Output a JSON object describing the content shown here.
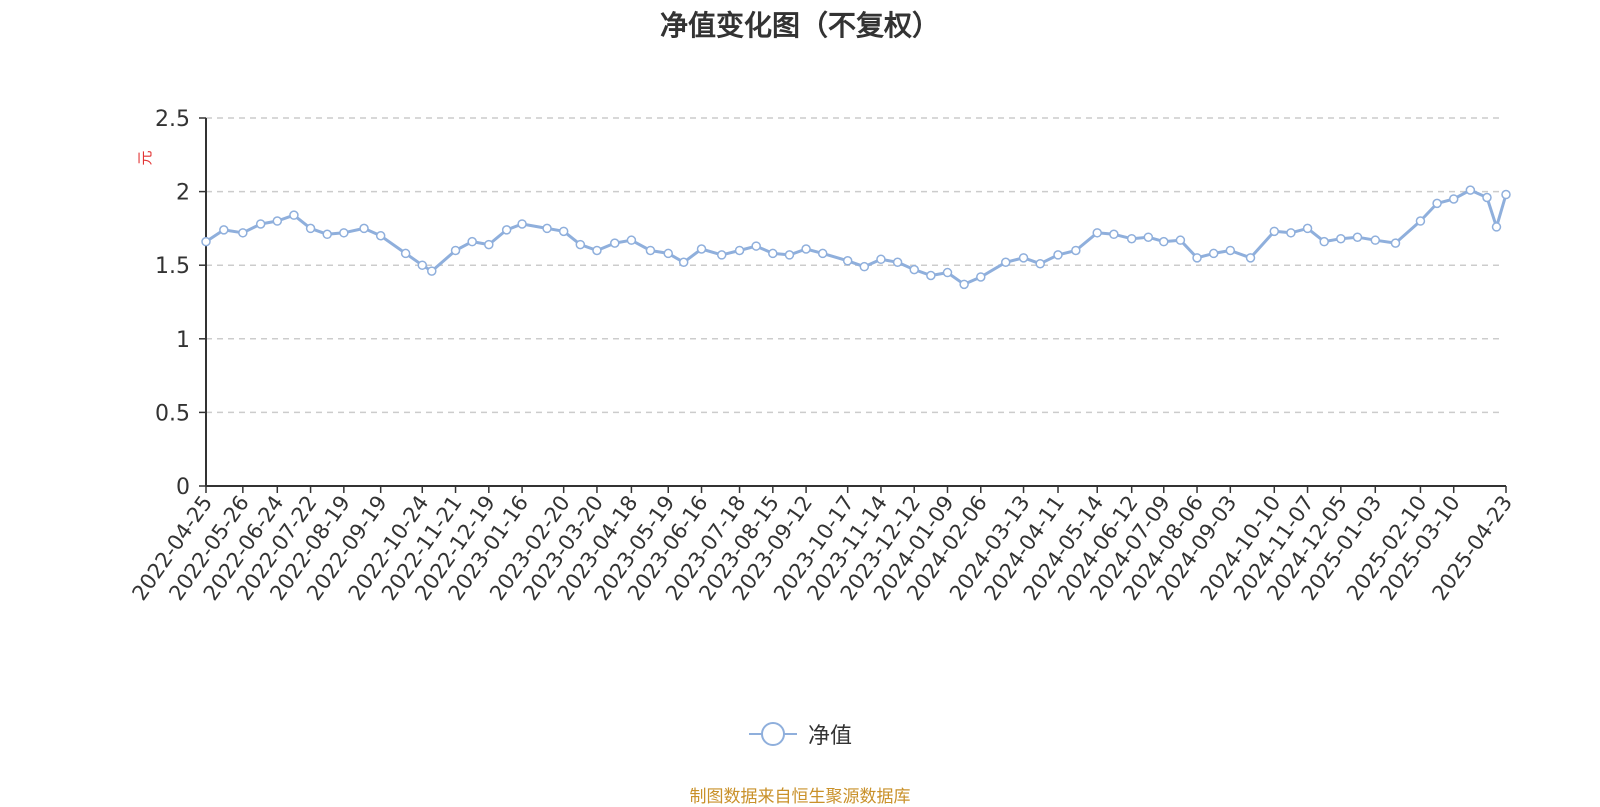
{
  "title": "净值变化图（不复权）",
  "legend": {
    "label": "净值",
    "color": "#8fafdc"
  },
  "source_note": "制图数据来自恒生聚源数据库",
  "chart_data": {
    "type": "line",
    "title": "净值变化图（不复权）",
    "ylabel": "元",
    "xlabel": "",
    "ylim": [
      0,
      2.5
    ],
    "yticks": [
      0,
      0.5,
      1,
      1.5,
      2,
      2.5
    ],
    "ytick_labels": [
      "0",
      "0.5",
      "1",
      "1.5",
      "2",
      "2.5"
    ],
    "grid": "horizontal dashed",
    "legend_position": "bottom",
    "x_tick_labels": [
      "2022-04-25",
      "2022-05-26",
      "2022-06-24",
      "2022-07-22",
      "2022-08-19",
      "2022-09-19",
      "2022-10-24",
      "2022-11-21",
      "2022-12-19",
      "2023-01-16",
      "2023-02-20",
      "2023-03-20",
      "2023-04-18",
      "2023-05-19",
      "2023-06-16",
      "2023-07-18",
      "2023-08-15",
      "2023-09-12",
      "2023-10-17",
      "2023-11-14",
      "2023-12-12",
      "2024-01-09",
      "2024-02-06",
      "2024-03-13",
      "2024-04-11",
      "2024-05-14",
      "2024-06-12",
      "2024-07-09",
      "2024-08-06",
      "2024-09-03",
      "2024-10-10",
      "2024-11-07",
      "2024-12-05",
      "2025-01-03",
      "2025-02-10",
      "2025-03-10",
      "2025-04-23"
    ],
    "series": [
      {
        "name": "净值",
        "color": "#8fafdc",
        "x": [
          "2022-04-25",
          "2022-05-10",
          "2022-05-26",
          "2022-06-10",
          "2022-06-24",
          "2022-07-08",
          "2022-07-22",
          "2022-08-05",
          "2022-08-19",
          "2022-09-05",
          "2022-09-19",
          "2022-10-10",
          "2022-10-24",
          "2022-11-01",
          "2022-11-21",
          "2022-12-05",
          "2022-12-19",
          "2023-01-03",
          "2023-01-16",
          "2023-02-06",
          "2023-02-20",
          "2023-03-06",
          "2023-03-20",
          "2023-04-04",
          "2023-04-18",
          "2023-05-04",
          "2023-05-19",
          "2023-06-01",
          "2023-06-16",
          "2023-07-03",
          "2023-07-18",
          "2023-08-01",
          "2023-08-15",
          "2023-08-29",
          "2023-09-12",
          "2023-09-26",
          "2023-10-17",
          "2023-10-31",
          "2023-11-14",
          "2023-11-28",
          "2023-12-12",
          "2023-12-26",
          "2024-01-09",
          "2024-01-23",
          "2024-02-06",
          "2024-02-27",
          "2024-03-13",
          "2024-03-27",
          "2024-04-11",
          "2024-04-26",
          "2024-05-14",
          "2024-05-28",
          "2024-06-12",
          "2024-06-26",
          "2024-07-09",
          "2024-07-23",
          "2024-08-06",
          "2024-08-20",
          "2024-09-03",
          "2024-09-20",
          "2024-10-10",
          "2024-10-24",
          "2024-11-07",
          "2024-11-21",
          "2024-12-05",
          "2024-12-19",
          "2025-01-03",
          "2025-01-20",
          "2025-02-10",
          "2025-02-24",
          "2025-03-10",
          "2025-03-24",
          "2025-04-07",
          "2025-04-15",
          "2025-04-23"
        ],
        "values": [
          1.66,
          1.74,
          1.72,
          1.78,
          1.8,
          1.84,
          1.75,
          1.71,
          1.72,
          1.75,
          1.7,
          1.58,
          1.5,
          1.46,
          1.6,
          1.66,
          1.64,
          1.74,
          1.78,
          1.75,
          1.73,
          1.64,
          1.6,
          1.65,
          1.67,
          1.6,
          1.58,
          1.52,
          1.61,
          1.57,
          1.6,
          1.63,
          1.58,
          1.57,
          1.61,
          1.58,
          1.53,
          1.49,
          1.54,
          1.52,
          1.47,
          1.43,
          1.45,
          1.37,
          1.42,
          1.52,
          1.55,
          1.51,
          1.57,
          1.6,
          1.72,
          1.71,
          1.68,
          1.69,
          1.66,
          1.67,
          1.55,
          1.58,
          1.6,
          1.55,
          1.73,
          1.72,
          1.75,
          1.66,
          1.68,
          1.69,
          1.67,
          1.65,
          1.8,
          1.92,
          1.95,
          2.01,
          1.96,
          1.76,
          1.98
        ]
      }
    ]
  }
}
